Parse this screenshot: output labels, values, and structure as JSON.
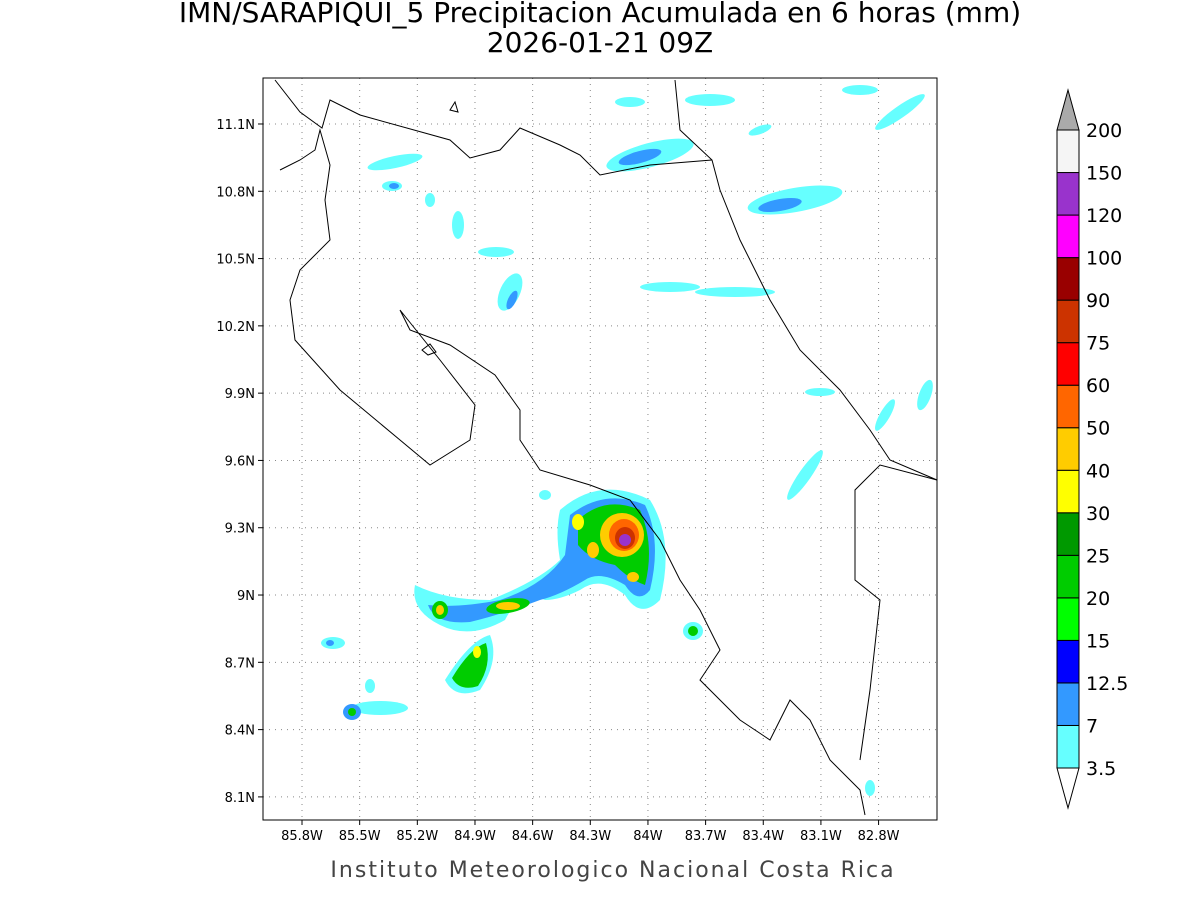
{
  "title": "IMN/SARAPIQUI_5 Precipitacion Acumulada en 6 horas (mm)",
  "subtitle": "2026-01-21 09Z",
  "footer": "Instituto Meteorologico Nacional Costa Rica",
  "map": {
    "lon_range": [
      -86.003,
      -82.496
    ],
    "lat_range": [
      7.997,
      11.305
    ],
    "lon_ticks": [
      {
        "value": -85.8,
        "label": "85.8W"
      },
      {
        "value": -85.5,
        "label": "85.5W"
      },
      {
        "value": -85.2,
        "label": "85.2W"
      },
      {
        "value": -84.9,
        "label": "84.9W"
      },
      {
        "value": -84.6,
        "label": "84.6W"
      },
      {
        "value": -84.3,
        "label": "84.3W"
      },
      {
        "value": -84,
        "label": "84W"
      },
      {
        "value": -83.7,
        "label": "83.7W"
      },
      {
        "value": -83.4,
        "label": "83.4W"
      },
      {
        "value": -83.1,
        "label": "83.1W"
      },
      {
        "value": -82.8,
        "label": "82.8W"
      }
    ],
    "lat_ticks": [
      {
        "value": 11.1,
        "label": "11.1N"
      },
      {
        "value": 10.8,
        "label": "10.8N"
      },
      {
        "value": 10.5,
        "label": "10.5N"
      },
      {
        "value": 10.2,
        "label": "10.2N"
      },
      {
        "value": 9.9,
        "label": "9.9N"
      },
      {
        "value": 9.6,
        "label": "9.6N"
      },
      {
        "value": 9.3,
        "label": "9.3N"
      },
      {
        "value": 9,
        "label": "9N"
      },
      {
        "value": 8.7,
        "label": "8.7N"
      },
      {
        "value": 8.4,
        "label": "8.4N"
      },
      {
        "value": 8.1,
        "label": "8.1N"
      }
    ],
    "grid": true
  },
  "colorbar": {
    "levels": [
      3.5,
      7,
      12.5,
      15,
      20,
      25,
      30,
      40,
      50,
      60,
      75,
      90,
      100,
      120,
      150,
      200
    ],
    "colors": [
      "#ffffff",
      "#66ffff",
      "#3399ff",
      "#0000ff",
      "#00ff00",
      "#00cc00",
      "#009900",
      "#ffff00",
      "#ffcc00",
      "#ff6600",
      "#ff0000",
      "#cc3300",
      "#990000",
      "#ff00ff",
      "#9933cc",
      "#f5f5f5",
      "#aaaaaa"
    ]
  }
}
